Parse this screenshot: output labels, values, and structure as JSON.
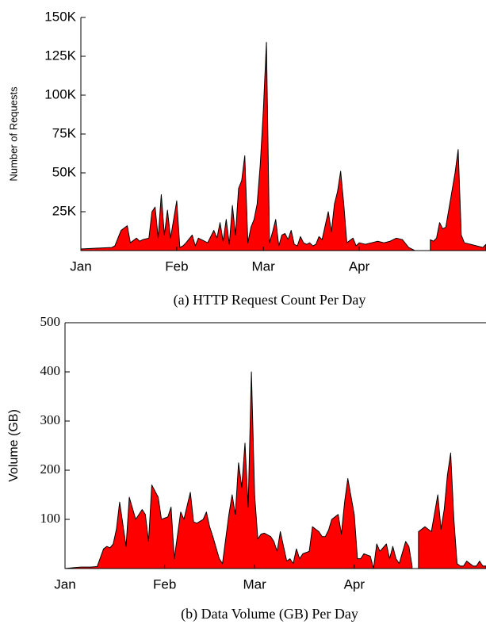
{
  "chart_data": [
    {
      "type": "area",
      "title": "(a) HTTP Request Count Per Day",
      "y_label": "Number of Requests",
      "color": "#ff0000",
      "xlim": [
        0,
        131
      ],
      "xticks": [
        {
          "value": 0,
          "label": "Jan"
        },
        {
          "value": 31,
          "label": "Feb"
        },
        {
          "value": 59,
          "label": "Mar"
        },
        {
          "value": 90,
          "label": "Apr"
        }
      ],
      "ylim": [
        0,
        150000
      ],
      "yticks": [
        {
          "value": 25000,
          "label": "25K"
        },
        {
          "value": 50000,
          "label": "50K"
        },
        {
          "value": 75000,
          "label": "75K"
        },
        {
          "value": 100000,
          "label": "100K"
        },
        {
          "value": 125000,
          "label": "125K"
        },
        {
          "value": 150000,
          "label": "150K"
        }
      ],
      "x": [
        0,
        5,
        10,
        11,
        13,
        15,
        16,
        18,
        19,
        20,
        22,
        23,
        24,
        25,
        26,
        27,
        28,
        29,
        31,
        32,
        33,
        34,
        36,
        37,
        38,
        40,
        41,
        43,
        44,
        45,
        46,
        47,
        48,
        49,
        50,
        51,
        52,
        53,
        54,
        55,
        56,
        57,
        58,
        59,
        60,
        61,
        62,
        63,
        64,
        65,
        66,
        67,
        68,
        69,
        70,
        71,
        72,
        73,
        74,
        75,
        76,
        77,
        78,
        79,
        80,
        81,
        82,
        83,
        84,
        85,
        86,
        88,
        89,
        90,
        92,
        94,
        96,
        98,
        100,
        102,
        104,
        106,
        108,
        111,
        112,
        113,
        114,
        115,
        116,
        117,
        118,
        121,
        122,
        123,
        124,
        126,
        128,
        130,
        131
      ],
      "values": [
        1000,
        1500,
        2000,
        3000,
        13000,
        16000,
        5000,
        8000,
        6000,
        7000,
        8000,
        25000,
        28000,
        8000,
        36000,
        10000,
        26000,
        8000,
        32000,
        2000,
        3000,
        5000,
        10000,
        3000,
        8000,
        6000,
        5000,
        13000,
        8000,
        18000,
        6000,
        20000,
        4000,
        29000,
        10000,
        40000,
        45000,
        61000,
        5000,
        15000,
        20000,
        30000,
        55000,
        90000,
        134000,
        5000,
        12000,
        20000,
        3000,
        10000,
        11000,
        7000,
        13000,
        4000,
        3000,
        9000,
        5000,
        4000,
        5000,
        3000,
        4000,
        9000,
        7000,
        16000,
        25000,
        12000,
        30000,
        38000,
        51000,
        30000,
        5000,
        8000,
        3000,
        5000,
        4000,
        5000,
        6000,
        5000,
        6000,
        8000,
        7000,
        2000,
        0,
        0,
        null,
        7000,
        6000,
        8000,
        18000,
        14000,
        15000,
        50000,
        65000,
        10000,
        5000,
        4000,
        3000,
        2000,
        4000
      ]
    },
    {
      "type": "area",
      "title": "(b) Data Volume (GB) Per Day",
      "y_label": "Volume (GB)",
      "color": "#ff0000",
      "xlim": [
        0,
        131
      ],
      "xticks": [
        {
          "value": 0,
          "label": "Jan"
        },
        {
          "value": 31,
          "label": "Feb"
        },
        {
          "value": 59,
          "label": "Mar"
        },
        {
          "value": 90,
          "label": "Apr"
        }
      ],
      "ylim": [
        0,
        500
      ],
      "yticks": [
        100,
        200,
        300,
        400,
        500
      ],
      "x": [
        0,
        3,
        5,
        8,
        10,
        12,
        13,
        14,
        15,
        16,
        17,
        19,
        20,
        22,
        24,
        25,
        26,
        27,
        29,
        30,
        32,
        33,
        34,
        36,
        37,
        39,
        40,
        41,
        43,
        44,
        45,
        46,
        48,
        49,
        51,
        52,
        53,
        54,
        55,
        56,
        57,
        58,
        59,
        60,
        61,
        62,
        64,
        65,
        66,
        67,
        69,
        70,
        71,
        72,
        73,
        74,
        76,
        77,
        79,
        80,
        81,
        82,
        83,
        85,
        86,
        87,
        88,
        90,
        91,
        92,
        93,
        95,
        96,
        97,
        98,
        100,
        101,
        102,
        103,
        104,
        106,
        107,
        108,
        109,
        110,
        112,
        113,
        114,
        116,
        117,
        118,
        119,
        120,
        121,
        122,
        123,
        124,
        125,
        127,
        128,
        129,
        130,
        131
      ],
      "values": [
        0,
        2,
        3,
        3,
        4,
        40,
        45,
        42,
        50,
        80,
        135,
        45,
        145,
        100,
        120,
        110,
        55,
        170,
        145,
        100,
        105,
        125,
        20,
        115,
        100,
        155,
        95,
        92,
        100,
        115,
        85,
        65,
        20,
        10,
        110,
        150,
        110,
        215,
        165,
        255,
        125,
        400,
        150,
        60,
        70,
        72,
        65,
        55,
        35,
        75,
        15,
        20,
        10,
        40,
        20,
        30,
        35,
        85,
        75,
        65,
        65,
        78,
        100,
        110,
        70,
        135,
        183,
        110,
        20,
        20,
        30,
        25,
        0,
        50,
        35,
        50,
        20,
        45,
        20,
        10,
        55,
        45,
        5,
        null,
        75,
        85,
        80,
        75,
        150,
        80,
        120,
        190,
        235,
        100,
        10,
        5,
        5,
        15,
        5,
        5,
        15,
        5,
        5
      ]
    }
  ]
}
